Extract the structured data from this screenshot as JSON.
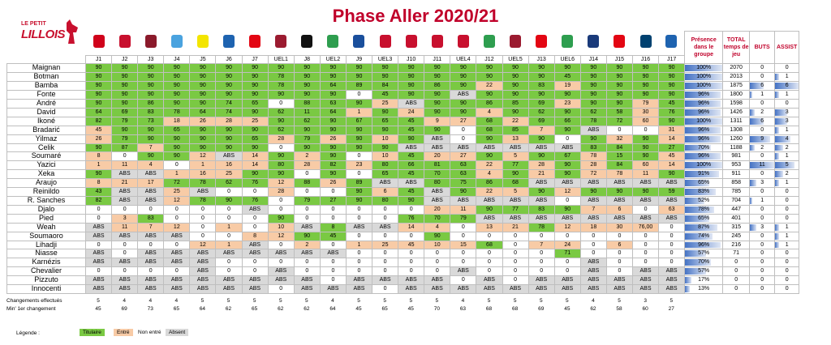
{
  "page": {
    "title": "Phase Aller 2020/21",
    "logo_small": "LE PETIT",
    "logo_big": "LILLOIS"
  },
  "colors": {
    "titulaire": "#7ac943",
    "entre": "#f8cba6",
    "absent": "#d9d9d9",
    "non_entre": "#ffffff",
    "title": "#c0002a"
  },
  "headers": {
    "presence": "Présence dans le groupe",
    "temps": "TOTAL temps de jeu",
    "buts": "BUTS",
    "assist": "ASSIST"
  },
  "matches": [
    "J1",
    "J2",
    "J3",
    "J4",
    "J5",
    "J6",
    "J7",
    "UEL1",
    "J8",
    "UEL2",
    "J9",
    "UEL3",
    "J10",
    "J11",
    "UEL4",
    "J12",
    "UEL5",
    "J13",
    "UEL6",
    "J14",
    "J15",
    "J16",
    "J17"
  ],
  "club_colors": [
    "#d0021b",
    "#c8102e",
    "#8b1a2b",
    "#4aa3df",
    "#f3e500",
    "#1e63b0",
    "#e30613",
    "#9b1b30",
    "#111111",
    "#2e9e4f",
    "#1a4f9c",
    "#c8102e",
    "#c8102e",
    "#c8102e",
    "#c8102e",
    "#2e9e4f",
    "#9b1b30",
    "#e30613",
    "#2e9e4f",
    "#1a3a7a",
    "#e30613",
    "#004170",
    "#1e63b0"
  ],
  "chart_data": {
    "type": "table",
    "title": "Phase Aller 2020/21",
    "legend": {
      "T": "Titulaire",
      "E": "Entré",
      "N": "Non entré",
      "A": "Absent"
    },
    "players": [
      {
        "name": "Maignan",
        "cells": [
          "T90",
          "T90",
          "T90",
          "T90",
          "T90",
          "T90",
          "T90",
          "T90",
          "T90",
          "T90",
          "T90",
          "T90",
          "T90",
          "T90",
          "T90",
          "T90",
          "T90",
          "T90",
          "T90",
          "T90",
          "T90",
          "T90",
          "T90"
        ],
        "presence": "100%",
        "presence_pct": 100,
        "temps": "2070",
        "buts": "0",
        "assist": "0"
      },
      {
        "name": "Botman",
        "cells": [
          "T90",
          "T90",
          "T90",
          "T90",
          "T90",
          "T90",
          "T90",
          "T78",
          "T90",
          "T90",
          "T90",
          "T90",
          "T90",
          "T90",
          "T90",
          "T90",
          "T90",
          "T90",
          "T45",
          "T90",
          "T90",
          "T90",
          "T90"
        ],
        "presence": "100%",
        "presence_pct": 100,
        "temps": "2013",
        "buts": "0",
        "assist": "1"
      },
      {
        "name": "Bamba",
        "cells": [
          "T90",
          "T90",
          "T90",
          "T90",
          "T90",
          "T90",
          "T90",
          "T78",
          "T90",
          "T64",
          "T89",
          "T84",
          "T90",
          "T86",
          "T90",
          "E22",
          "T90",
          "T83",
          "E19",
          "T90",
          "T90",
          "T90",
          "T90"
        ],
        "presence": "100%",
        "presence_pct": 100,
        "temps": "1875",
        "buts": "6",
        "assist": "6"
      },
      {
        "name": "Fonte",
        "cells": [
          "T90",
          "T90",
          "T90",
          "T90",
          "T90",
          "T90",
          "T90",
          "T90",
          "T90",
          "T90",
          "N0",
          "T45",
          "T90",
          "T90",
          "AABS",
          "T90",
          "T90",
          "T90",
          "T90",
          "T90",
          "T90",
          "T90",
          "T90"
        ],
        "presence": "96%",
        "presence_pct": 96,
        "temps": "1800",
        "buts": "1",
        "assist": "1"
      },
      {
        "name": "André",
        "cells": [
          "T90",
          "T90",
          "T86",
          "T90",
          "T90",
          "T74",
          "T65",
          "N0",
          "T88",
          "T63",
          "T90",
          "E25",
          "AABS",
          "T90",
          "T90",
          "T86",
          "T85",
          "T69",
          "E23",
          "T90",
          "T90",
          "E79",
          "T45"
        ],
        "presence": "96%",
        "presence_pct": 96,
        "temps": "1598",
        "buts": "0",
        "assist": "0"
      },
      {
        "name": "David",
        "cells": [
          "T64",
          "T69",
          "T83",
          "T78",
          "T64",
          "T74",
          "T90",
          "T62",
          "T11",
          "T64",
          "E1",
          "T90",
          "E24",
          "T90",
          "T90",
          "E4",
          "T90",
          "T62",
          "T90",
          "T62",
          "T58",
          "E30",
          "T76"
        ],
        "presence": "96%",
        "presence_pct": 96,
        "temps": "1426",
        "buts": "2",
        "assist": "3"
      },
      {
        "name": "Ikoné",
        "cells": [
          "T82",
          "T79",
          "T73",
          "E18",
          "E26",
          "E28",
          "E25",
          "T90",
          "T62",
          "T90",
          "T67",
          "T65",
          "T45",
          "E9",
          "E27",
          "T68",
          "E22",
          "T69",
          "T66",
          "T78",
          "T72",
          "E60",
          "T90"
        ],
        "presence": "100%",
        "presence_pct": 100,
        "temps": "1311",
        "buts": "6",
        "assist": "3"
      },
      {
        "name": "Bradarić",
        "cells": [
          "E45",
          "T90",
          "T90",
          "T65",
          "T90",
          "T90",
          "T90",
          "T62",
          "T90",
          "T90",
          "T90",
          "T90",
          "T45",
          "T90",
          "N0",
          "T68",
          "T85",
          "E7",
          "T90",
          "AABS",
          "N0",
          "N0",
          "E31"
        ],
        "presence": "96%",
        "presence_pct": 96,
        "temps": "1308",
        "buts": "0",
        "assist": "1"
      },
      {
        "name": "Yilmaz",
        "cells": [
          "E26",
          "T79",
          "T90",
          "T90",
          "T90",
          "T90",
          "T65",
          "E28",
          "T79",
          "E26",
          "T90",
          "E10",
          "T90",
          "AABS",
          "N0",
          "T90",
          "E13",
          "T90",
          "N0",
          "T90",
          "E32",
          "T90",
          "E14"
        ],
        "presence": "96%",
        "presence_pct": 96,
        "temps": "1260",
        "buts": "9",
        "assist": "4"
      },
      {
        "name": "Celik",
        "cells": [
          "T90",
          "T87",
          "E7",
          "T90",
          "T90",
          "T90",
          "T90",
          "N0",
          "T90",
          "T90",
          "T90",
          "T90",
          "AABS",
          "AABS",
          "AABS",
          "AABS",
          "AABS",
          "AABS",
          "AABS",
          "T83",
          "T84",
          "T90",
          "T27"
        ],
        "presence": "70%",
        "presence_pct": 70,
        "temps": "1188",
        "buts": "2",
        "assist": "2"
      },
      {
        "name": "Soumaré",
        "cells": [
          "E8",
          "N0",
          "T90",
          "T90",
          "E12",
          "AABS",
          "E14",
          "T90",
          "E2",
          "T90",
          "N0",
          "E10",
          "T45",
          "E20",
          "E27",
          "T90",
          "E5",
          "T90",
          "T67",
          "E78",
          "T15",
          "T90",
          "E45"
        ],
        "presence": "96%",
        "presence_pct": 96,
        "temps": "981",
        "buts": "0",
        "assist": "1"
      },
      {
        "name": "Yazici",
        "cells": [
          "E1",
          "E11",
          "E4",
          "N0",
          "E1",
          "E16",
          "E14",
          "T80",
          "E28",
          "T82",
          "E23",
          "T80",
          "T66",
          "T81",
          "T63",
          "E22",
          "T77",
          "E28",
          "T90",
          "E28",
          "T84",
          "E60",
          "E14"
        ],
        "presence": "100%",
        "presence_pct": 100,
        "temps": "953",
        "buts": "11",
        "assist": "5"
      },
      {
        "name": "Xeka",
        "cells": [
          "T90",
          "AABS",
          "AABS",
          "E1",
          "E16",
          "E25",
          "T90",
          "T90",
          "N0",
          "T90",
          "N0",
          "T65",
          "T45",
          "T70",
          "T63",
          "E4",
          "T90",
          "E21",
          "T90",
          "E72",
          "E78",
          "E11",
          "T90"
        ],
        "presence": "91%",
        "presence_pct": 91,
        "temps": "911",
        "buts": "0",
        "assist": "2"
      },
      {
        "name": "Araujo",
        "cells": [
          "E8",
          "E21",
          "E17",
          "T72",
          "T78",
          "T62",
          "T76",
          "E12",
          "T88",
          "E26",
          "T89",
          "AABS",
          "AABS",
          "T80",
          "T75",
          "T86",
          "T68",
          "AABS",
          "AABS",
          "AABS",
          "AABS",
          "AABS",
          "AABS"
        ],
        "presence": "65%",
        "presence_pct": 65,
        "temps": "858",
        "buts": "3",
        "assist": "1"
      },
      {
        "name": "Reinildo",
        "cells": [
          "T43",
          "AABS",
          "AABS",
          "E25",
          "AABS",
          "N0",
          "N0",
          "E28",
          "N0",
          "N0",
          "T90",
          "E6",
          "T45",
          "AABS",
          "T90",
          "E22",
          "E5",
          "T90",
          "E12",
          "T90",
          "T90",
          "T90",
          "T59"
        ],
        "presence": "83%",
        "presence_pct": 83,
        "temps": "785",
        "buts": "0",
        "assist": "0"
      },
      {
        "name": "R. Sanches",
        "cells": [
          "T82",
          "AABS",
          "AABS",
          "E12",
          "T78",
          "T90",
          "T76",
          "N0",
          "T79",
          "T27",
          "T90",
          "T80",
          "T90",
          "AABS",
          "AABS",
          "AABS",
          "AABS",
          "AABS",
          "N0",
          "AABS",
          "AABS",
          "AABS",
          "AABS"
        ],
        "presence": "52%",
        "presence_pct": 52,
        "temps": "704",
        "buts": "1",
        "assist": "0"
      },
      {
        "name": "Djalo",
        "cells": [
          "N0",
          "N0",
          "N0",
          "N0",
          "N0",
          "N0",
          "AABS",
          "N0",
          "N0",
          "N0",
          "N0",
          "N0",
          "N0",
          "E20",
          "E11",
          "T90",
          "T77",
          "T83",
          "T90",
          "E7",
          "E6",
          "N0",
          "E63"
        ],
        "presence": "78%",
        "presence_pct": 78,
        "temps": "447",
        "buts": "0",
        "assist": "0"
      },
      {
        "name": "Pied",
        "cells": [
          "N0",
          "E3",
          "T83",
          "N0",
          "N0",
          "N0",
          "N0",
          "T90",
          "N0",
          "N0",
          "N0",
          "N0",
          "T76",
          "T70",
          "T79",
          "AABS",
          "AABS",
          "AABS",
          "AABS",
          "AABS",
          "AABS",
          "AABS",
          "AABS"
        ],
        "presence": "65%",
        "presence_pct": 65,
        "temps": "401",
        "buts": "0",
        "assist": "0"
      },
      {
        "name": "Weah",
        "cells": [
          "AABS",
          "E11",
          "E7",
          "E12",
          "N0",
          "E1",
          "N0",
          "E10",
          "AABS",
          "T8",
          "AABS",
          "AABS",
          "E14",
          "E4",
          "N0",
          "E13",
          "E21",
          "T78",
          "E12",
          "E18",
          "E30",
          "E76,00",
          "N0"
        ],
        "presence": "87%",
        "presence_pct": 87,
        "temps": "315",
        "buts": "3",
        "assist": "1"
      },
      {
        "name": "Soumaoro",
        "cells": [
          "AABS",
          "AABS",
          "AABS",
          "AABS",
          "N0",
          "N0",
          "E8",
          "E12",
          "T90",
          "T45",
          "N0",
          "N0",
          "N0",
          "T90",
          "N0",
          "N0",
          "N0",
          "N0",
          "N0",
          "N0",
          "N0",
          "N0",
          "N0"
        ],
        "presence": "74%",
        "presence_pct": 74,
        "temps": "245",
        "buts": "0",
        "assist": "1"
      },
      {
        "name": "Lihadji",
        "cells": [
          "N0",
          "N0",
          "N0",
          "N0",
          "E12",
          "E1",
          "AABS",
          "N0",
          "E2",
          "N0",
          "E1",
          "E25",
          "E45",
          "E10",
          "E15",
          "T68",
          "N0",
          "E7",
          "E24",
          "N0",
          "E6",
          "N0",
          "N0"
        ],
        "presence": "96%",
        "presence_pct": 96,
        "temps": "216",
        "buts": "0",
        "assist": "1"
      },
      {
        "name": "Niasse",
        "cells": [
          "AABS",
          "N0",
          "AABS",
          "AABS",
          "AABS",
          "AABS",
          "AABS",
          "AABS",
          "AABS",
          "AABS",
          "N0",
          "N0",
          "N0",
          "N0",
          "N0",
          "N0",
          "N0",
          "N0",
          "T71",
          "N0",
          "N0",
          "N0",
          "N0"
        ],
        "presence": "57%",
        "presence_pct": 57,
        "temps": "71",
        "buts": "0",
        "assist": "0"
      },
      {
        "name": "Karnézis",
        "cells": [
          "AABS",
          "AABS",
          "AABS",
          "AABS",
          "AABS",
          "N0",
          "N0",
          "N0",
          "N0",
          "N0",
          "N0",
          "N0",
          "N0",
          "N0",
          "N0",
          "N0",
          "N0",
          "N0",
          "N0",
          "AABS",
          "N0",
          "N0",
          "N0"
        ],
        "presence": "70%",
        "presence_pct": 70,
        "temps": "0",
        "buts": "0",
        "assist": "0"
      },
      {
        "name": "Chevalier",
        "cells": [
          "N0",
          "N0",
          "N0",
          "N0",
          "AABS",
          "N0",
          "N0",
          "AABS",
          "N0",
          "N0",
          "N0",
          "N0",
          "N0",
          "N0",
          "AABS",
          "N0",
          "N0",
          "N0",
          "N0",
          "AABS",
          "N0",
          "AABS",
          "AABS"
        ],
        "presence": "57%",
        "presence_pct": 57,
        "temps": "0",
        "buts": "0",
        "assist": "0"
      },
      {
        "name": "Pizzuto",
        "cells": [
          "AABS",
          "AABS",
          "AABS",
          "AABS",
          "AABS",
          "AABS",
          "AABS",
          "AABS",
          "AABS",
          "N0",
          "AABS",
          "AABS",
          "AABS",
          "AABS",
          "N0",
          "AABS",
          "N0",
          "AABS",
          "AABS",
          "AABS",
          "AABS",
          "AABS",
          "AABS"
        ],
        "presence": "17%",
        "presence_pct": 17,
        "temps": "0",
        "buts": "0",
        "assist": "0"
      },
      {
        "name": "Innocenti",
        "cells": [
          "AABS",
          "AABS",
          "AABS",
          "AABS",
          "AABS",
          "AABS",
          "AABS",
          "N0",
          "AABS",
          "AABS",
          "AABS",
          "N0",
          "AABS",
          "AABS",
          "AABS",
          "AABS",
          "AABS",
          "AABS",
          "AABS",
          "AABS",
          "AABS",
          "AABS",
          "AABS"
        ],
        "presence": "13%",
        "presence_pct": 13,
        "temps": "0",
        "buts": "0",
        "assist": "0"
      }
    ],
    "changements": [
      "5",
      "4",
      "4",
      "4",
      "5",
      "5",
      "5",
      "5",
      "5",
      "4",
      "5",
      "5",
      "5",
      "5",
      "4",
      "5",
      "5",
      "5",
      "5",
      "4",
      "5",
      "3",
      "5"
    ],
    "min_changement": [
      "45",
      "69",
      "73",
      "65",
      "64",
      "62",
      "65",
      "62",
      "62",
      "64",
      "45",
      "65",
      "45",
      "70",
      "63",
      "68",
      "68",
      "69",
      "45",
      "62",
      "58",
      "60",
      "27"
    ]
  },
  "footer": {
    "changements_label": "Changements effectués",
    "min_label": "Min' 1er changement",
    "legende_label": "Légende :",
    "legend_titulaire": "Titulaire",
    "legend_entre": "Entré",
    "legend_non_entre": "Non entré",
    "legend_absent": "Absent"
  }
}
